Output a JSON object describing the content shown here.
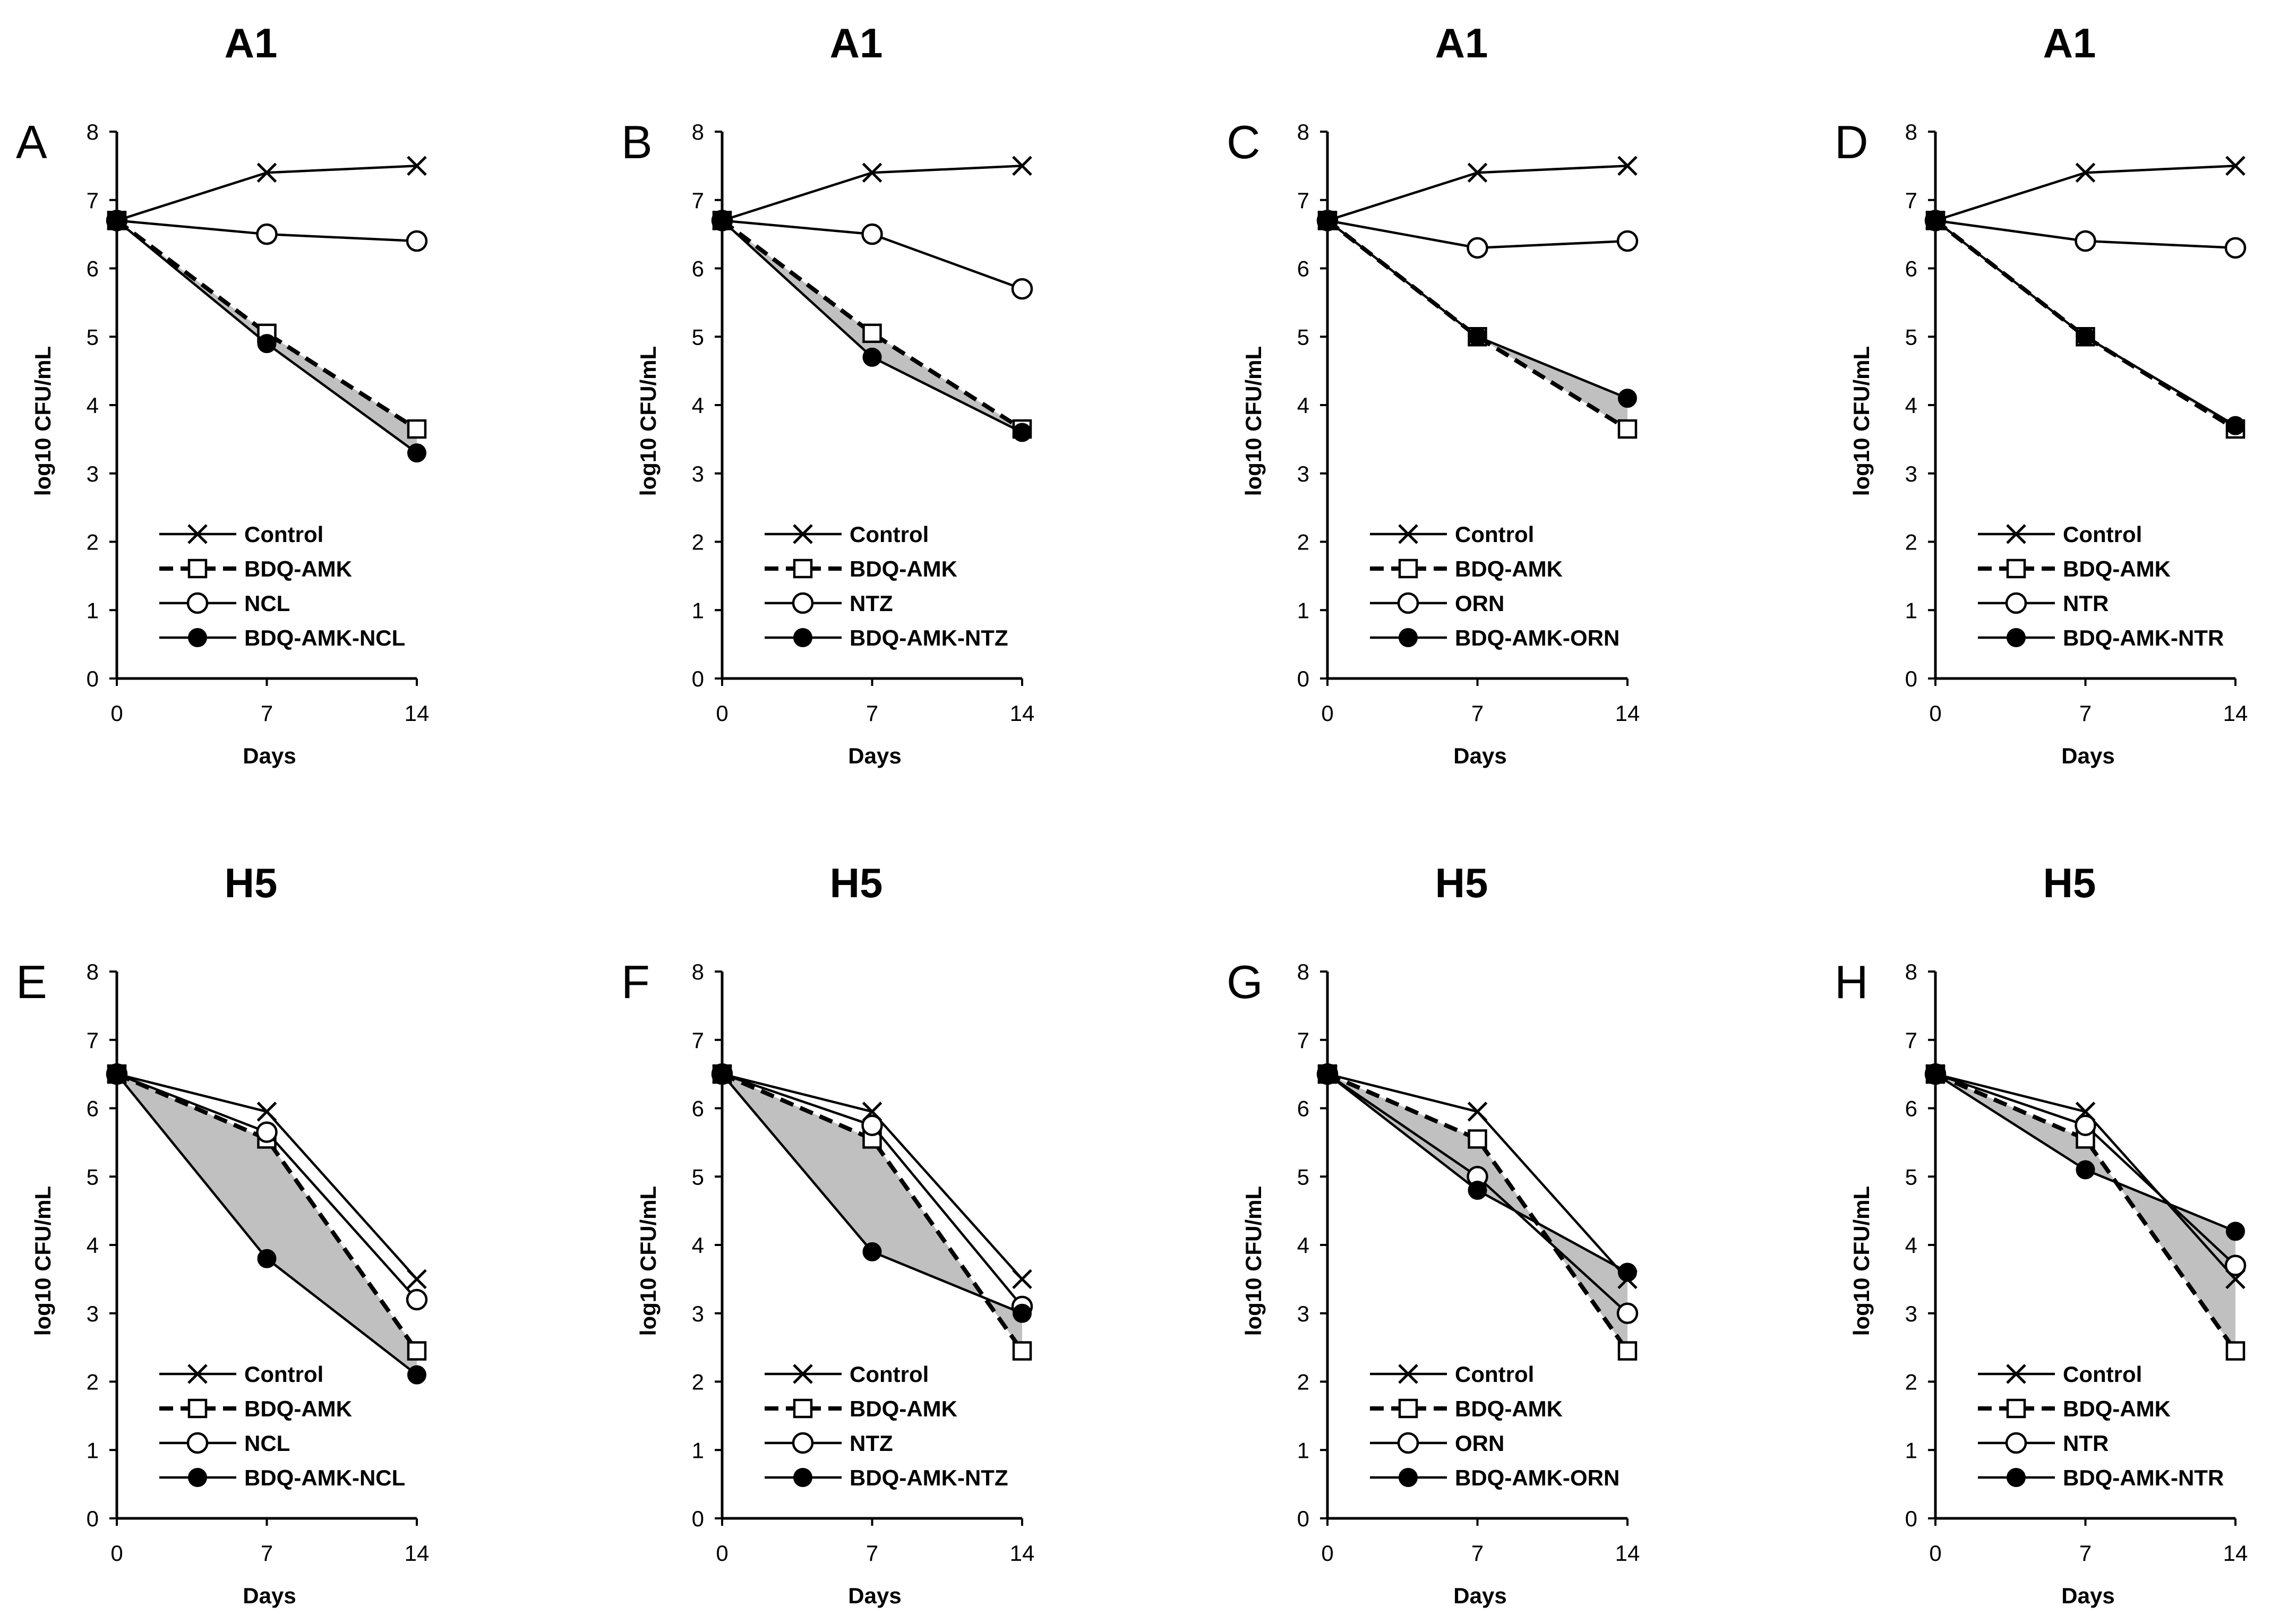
{
  "figure": {
    "shared": {
      "type": "line",
      "xlabel": "Days",
      "ylabel": "log10 CFU/mL",
      "x": [
        0,
        7,
        14
      ],
      "xticks": [
        0,
        7,
        14
      ],
      "ylim": [
        0,
        8
      ],
      "yticks": [
        0,
        1,
        2,
        3,
        4,
        5,
        6,
        7,
        8
      ]
    },
    "style": {
      "line_color": "#000000",
      "shade_color": "#c0c0c0",
      "square_fill": "#ffffff"
    }
  },
  "chart_data": [
    {
      "panel": "A",
      "title": "A1",
      "type": "line",
      "xlabel": "Days",
      "ylabel": "log10 CFU/mL",
      "ylim": [
        0,
        8
      ],
      "x": [
        0,
        7,
        14
      ],
      "series": [
        {
          "name": "Control",
          "marker": "x",
          "dash": false,
          "values": [
            6.7,
            7.4,
            7.5
          ]
        },
        {
          "name": "BDQ-AMK",
          "marker": "square",
          "dash": true,
          "values": [
            6.7,
            5.05,
            3.65
          ]
        },
        {
          "name": "NCL",
          "marker": "circle",
          "dash": false,
          "values": [
            6.7,
            6.5,
            6.4
          ]
        },
        {
          "name": "BDQ-AMK-NCL",
          "marker": "dot",
          "dash": false,
          "values": [
            6.7,
            4.9,
            3.3
          ]
        }
      ]
    },
    {
      "panel": "B",
      "title": "A1",
      "type": "line",
      "xlabel": "Days",
      "ylabel": "log10 CFU/mL",
      "ylim": [
        0,
        8
      ],
      "x": [
        0,
        7,
        14
      ],
      "series": [
        {
          "name": "Control",
          "marker": "x",
          "dash": false,
          "values": [
            6.7,
            7.4,
            7.5
          ]
        },
        {
          "name": "BDQ-AMK",
          "marker": "square",
          "dash": true,
          "values": [
            6.7,
            5.05,
            3.65
          ]
        },
        {
          "name": "NTZ",
          "marker": "circle",
          "dash": false,
          "values": [
            6.7,
            6.5,
            5.7
          ]
        },
        {
          "name": "BDQ-AMK-NTZ",
          "marker": "dot",
          "dash": false,
          "values": [
            6.7,
            4.7,
            3.6
          ]
        }
      ]
    },
    {
      "panel": "C",
      "title": "A1",
      "type": "line",
      "xlabel": "Days",
      "ylabel": "log10 CFU/mL",
      "ylim": [
        0,
        8
      ],
      "x": [
        0,
        7,
        14
      ],
      "series": [
        {
          "name": "Control",
          "marker": "x",
          "dash": false,
          "values": [
            6.7,
            7.4,
            7.5
          ]
        },
        {
          "name": "BDQ-AMK",
          "marker": "square",
          "dash": true,
          "values": [
            6.7,
            5.0,
            3.65
          ]
        },
        {
          "name": "ORN",
          "marker": "circle",
          "dash": false,
          "values": [
            6.7,
            6.3,
            6.4
          ]
        },
        {
          "name": "BDQ-AMK-ORN",
          "marker": "dot",
          "dash": false,
          "values": [
            6.7,
            5.0,
            4.1
          ]
        }
      ]
    },
    {
      "panel": "D",
      "title": "A1",
      "type": "line",
      "xlabel": "Days",
      "ylabel": "log10 CFU/mL",
      "ylim": [
        0,
        8
      ],
      "x": [
        0,
        7,
        14
      ],
      "series": [
        {
          "name": "Control",
          "marker": "x",
          "dash": false,
          "values": [
            6.7,
            7.4,
            7.5
          ]
        },
        {
          "name": "BDQ-AMK",
          "marker": "square",
          "dash": true,
          "values": [
            6.7,
            5.0,
            3.65
          ]
        },
        {
          "name": "NTR",
          "marker": "circle",
          "dash": false,
          "values": [
            6.7,
            6.4,
            6.3
          ]
        },
        {
          "name": "BDQ-AMK-NTR",
          "marker": "dot",
          "dash": false,
          "values": [
            6.7,
            5.0,
            3.7
          ]
        }
      ]
    },
    {
      "panel": "E",
      "title": "H5",
      "type": "line",
      "xlabel": "Days",
      "ylabel": "log10 CFU/mL",
      "ylim": [
        0,
        8
      ],
      "x": [
        0,
        7,
        14
      ],
      "series": [
        {
          "name": "Control",
          "marker": "x",
          "dash": false,
          "values": [
            6.5,
            5.95,
            3.5
          ]
        },
        {
          "name": "BDQ-AMK",
          "marker": "square",
          "dash": true,
          "values": [
            6.5,
            5.55,
            2.45
          ]
        },
        {
          "name": "NCL",
          "marker": "circle",
          "dash": false,
          "values": [
            6.5,
            5.65,
            3.2
          ]
        },
        {
          "name": "BDQ-AMK-NCL",
          "marker": "dot",
          "dash": false,
          "values": [
            6.5,
            3.8,
            2.1
          ]
        }
      ]
    },
    {
      "panel": "F",
      "title": "H5",
      "type": "line",
      "xlabel": "Days",
      "ylabel": "log10 CFU/mL",
      "ylim": [
        0,
        8
      ],
      "x": [
        0,
        7,
        14
      ],
      "series": [
        {
          "name": "Control",
          "marker": "x",
          "dash": false,
          "values": [
            6.5,
            5.95,
            3.5
          ]
        },
        {
          "name": "BDQ-AMK",
          "marker": "square",
          "dash": true,
          "values": [
            6.5,
            5.55,
            2.45
          ]
        },
        {
          "name": "NTZ",
          "marker": "circle",
          "dash": false,
          "values": [
            6.5,
            5.75,
            3.1
          ]
        },
        {
          "name": "BDQ-AMK-NTZ",
          "marker": "dot",
          "dash": false,
          "values": [
            6.5,
            3.9,
            3.0
          ]
        }
      ]
    },
    {
      "panel": "G",
      "title": "H5",
      "type": "line",
      "xlabel": "Days",
      "ylabel": "log10 CFU/mL",
      "ylim": [
        0,
        8
      ],
      "x": [
        0,
        7,
        14
      ],
      "series": [
        {
          "name": "Control",
          "marker": "x",
          "dash": false,
          "values": [
            6.5,
            5.95,
            3.5
          ]
        },
        {
          "name": "BDQ-AMK",
          "marker": "square",
          "dash": true,
          "values": [
            6.5,
            5.55,
            2.45
          ]
        },
        {
          "name": "ORN",
          "marker": "circle",
          "dash": false,
          "values": [
            6.5,
            5.0,
            3.0
          ]
        },
        {
          "name": "BDQ-AMK-ORN",
          "marker": "dot",
          "dash": false,
          "values": [
            6.5,
            4.8,
            3.6
          ]
        }
      ]
    },
    {
      "panel": "H",
      "title": "H5",
      "type": "line",
      "xlabel": "Days",
      "ylabel": "log10 CFU/mL",
      "ylim": [
        0,
        8
      ],
      "x": [
        0,
        7,
        14
      ],
      "series": [
        {
          "name": "Control",
          "marker": "x",
          "dash": false,
          "values": [
            6.5,
            5.95,
            3.5
          ]
        },
        {
          "name": "BDQ-AMK",
          "marker": "square",
          "dash": true,
          "values": [
            6.5,
            5.55,
            2.45
          ]
        },
        {
          "name": "NTR",
          "marker": "circle",
          "dash": false,
          "values": [
            6.5,
            5.75,
            3.7
          ]
        },
        {
          "name": "BDQ-AMK-NTR",
          "marker": "dot",
          "dash": false,
          "values": [
            6.5,
            5.1,
            4.2
          ]
        }
      ]
    }
  ]
}
